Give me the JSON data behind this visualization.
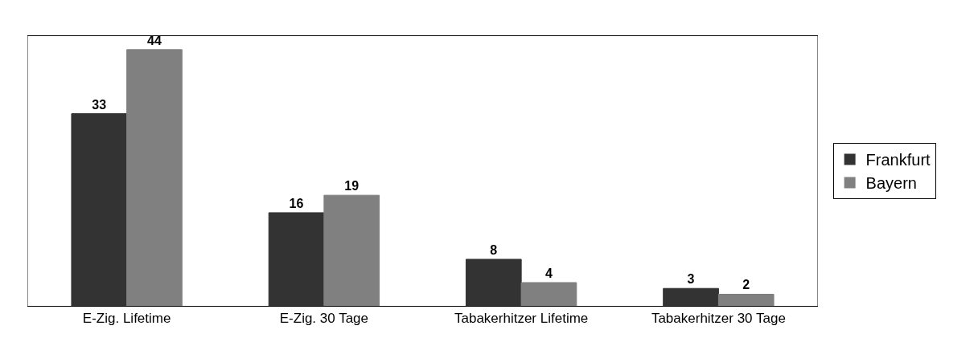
{
  "chart_data": {
    "type": "bar",
    "categories": [
      "E-Zig. Lifetime",
      "E-Zig. 30 Tage",
      "Tabakerhitzer Lifetime",
      "Tabakerhitzer 30 Tage"
    ],
    "series": [
      {
        "name": "Frankfurt",
        "color": "#333333",
        "values": [
          33,
          16,
          8,
          3
        ]
      },
      {
        "name": "Bayern",
        "color": "#808080",
        "values": [
          44,
          19,
          4,
          2
        ]
      }
    ],
    "data_labels": true,
    "legend": "right"
  }
}
